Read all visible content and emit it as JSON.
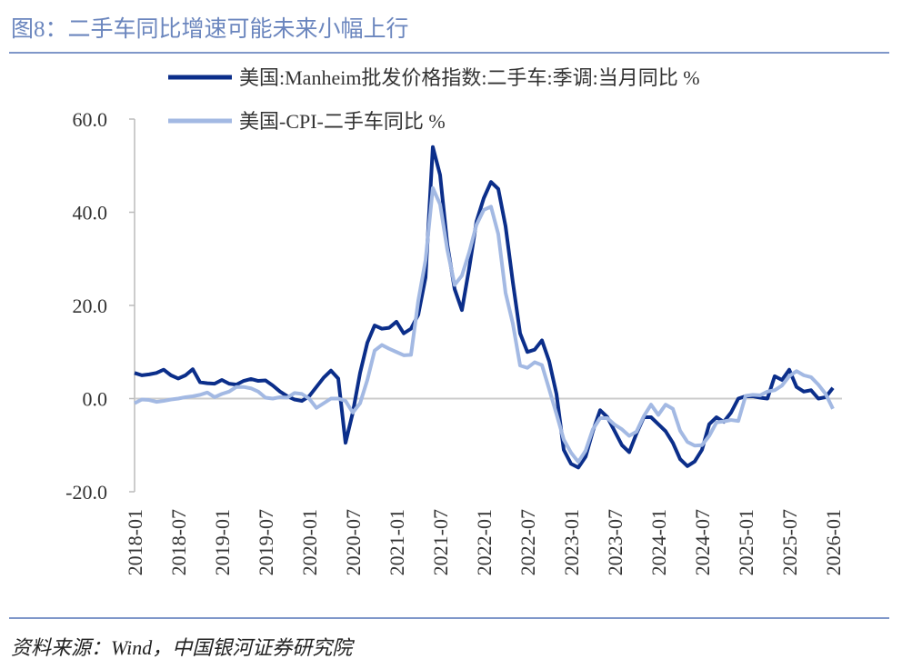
{
  "header": {
    "title": "图8：二手车同比增速可能未来小幅上行"
  },
  "chart_data": {
    "type": "line",
    "categories": [
      "2018-01",
      null,
      null,
      null,
      null,
      null,
      "2018-07",
      null,
      null,
      null,
      null,
      null,
      "2019-01",
      null,
      null,
      null,
      null,
      null,
      "2019-07",
      null,
      null,
      null,
      null,
      null,
      "2020-01",
      null,
      null,
      null,
      null,
      null,
      "2020-07",
      null,
      null,
      null,
      null,
      null,
      "2021-01",
      null,
      null,
      null,
      null,
      null,
      "2021-07",
      null,
      null,
      null,
      null,
      null,
      "2022-01",
      null,
      null,
      null,
      null,
      null,
      "2022-07",
      null,
      null,
      null,
      null,
      null,
      "2023-01",
      null,
      null,
      null,
      null,
      null,
      "2023-07",
      null,
      null,
      null,
      null,
      null,
      "2024-01",
      null,
      null,
      null,
      null,
      null,
      "2024-07",
      null,
      null,
      null,
      null,
      null,
      "2025-01",
      null,
      null,
      null,
      null,
      null,
      "2025-07",
      null,
      null,
      null,
      null,
      null,
      "2026-01"
    ],
    "series": [
      {
        "name": "美国:Manheim批发价格指数:二手车:季调:当月同比 %",
        "color": "#0b2e8a",
        "values": [
          5.5,
          5.0,
          5.2,
          5.5,
          6.2,
          5.0,
          4.3,
          5.0,
          6.3,
          3.5,
          3.3,
          3.2,
          4.0,
          3.2,
          3.0,
          3.8,
          4.2,
          3.8,
          3.9,
          2.8,
          1.5,
          0.5,
          -0.2,
          -0.5,
          0.5,
          2.5,
          4.5,
          6.0,
          4.3,
          -9.5,
          -3.0,
          5.5,
          12.0,
          15.7,
          15.0,
          15.2,
          16.5,
          14.0,
          15.0,
          18.0,
          26.0,
          54.0,
          48.0,
          33.0,
          23.5,
          19.0,
          28.0,
          38.0,
          43.0,
          46.5,
          45.0,
          37.0,
          25.0,
          14.0,
          10.0,
          10.5,
          12.5,
          8.0,
          1.0,
          -11.0,
          -14.0,
          -14.8,
          -12.5,
          -7.0,
          -2.5,
          -4.0,
          -7.0,
          -10.0,
          -11.5,
          -7.5,
          -4.0,
          -4.0,
          -5.5,
          -7.0,
          -9.5,
          -13.0,
          -14.5,
          -13.5,
          -11.0,
          -5.5,
          -4.0,
          -5.0,
          -3.0,
          0.0,
          0.5,
          0.5,
          0.2,
          0.0,
          4.8,
          4.0,
          6.2,
          2.5,
          1.5,
          1.8,
          0.0,
          0.3,
          2.3
        ]
      },
      {
        "name": "美国-CPI-二手车同比 %",
        "color": "#a3b9e3",
        "values": [
          -1.0,
          -0.2,
          -0.3,
          -0.7,
          -0.5,
          -0.2,
          0.0,
          0.3,
          0.5,
          0.8,
          1.3,
          0.3,
          1.0,
          1.5,
          2.5,
          2.5,
          2.2,
          1.5,
          0.2,
          0.0,
          0.3,
          0.2,
          1.2,
          1.0,
          0.0,
          -2.0,
          -1.0,
          0.0,
          0.0,
          -0.5,
          -3.0,
          -1.0,
          4.0,
          10.3,
          11.5,
          10.7,
          10.0,
          9.3,
          9.4,
          21.0,
          29.7,
          45.2,
          41.7,
          31.9,
          24.4,
          26.4,
          31.4,
          37.3,
          40.5,
          41.2,
          35.3,
          22.7,
          16.1,
          7.1,
          6.6,
          7.8,
          7.2,
          2.0,
          -3.3,
          -8.8,
          -11.6,
          -13.6,
          -11.2,
          -6.6,
          -4.2,
          -4.2,
          -5.6,
          -6.6,
          -8.0,
          -7.1,
          -3.8,
          -1.3,
          -3.5,
          -1.3,
          -2.2,
          -6.9,
          -9.3,
          -10.1,
          -10.0,
          -8.0,
          -5.1,
          -4.9,
          -4.6,
          -4.8,
          0.6,
          0.8,
          0.7,
          1.5,
          1.8,
          2.8,
          4.8,
          5.9,
          5.0,
          4.6,
          3.0,
          1.0,
          -2.2
        ]
      }
    ],
    "ylim": [
      -20,
      60
    ],
    "yticks": [
      {
        "value": 60,
        "label": "60.0"
      },
      {
        "value": 40,
        "label": "40.0"
      },
      {
        "value": 20,
        "label": "20.0"
      },
      {
        "value": 0,
        "label": "0.0"
      },
      {
        "value": -20,
        "label": "-20.0"
      }
    ]
  },
  "footer": {
    "source": "资料来源：Wind，中国银河证券研究院"
  }
}
